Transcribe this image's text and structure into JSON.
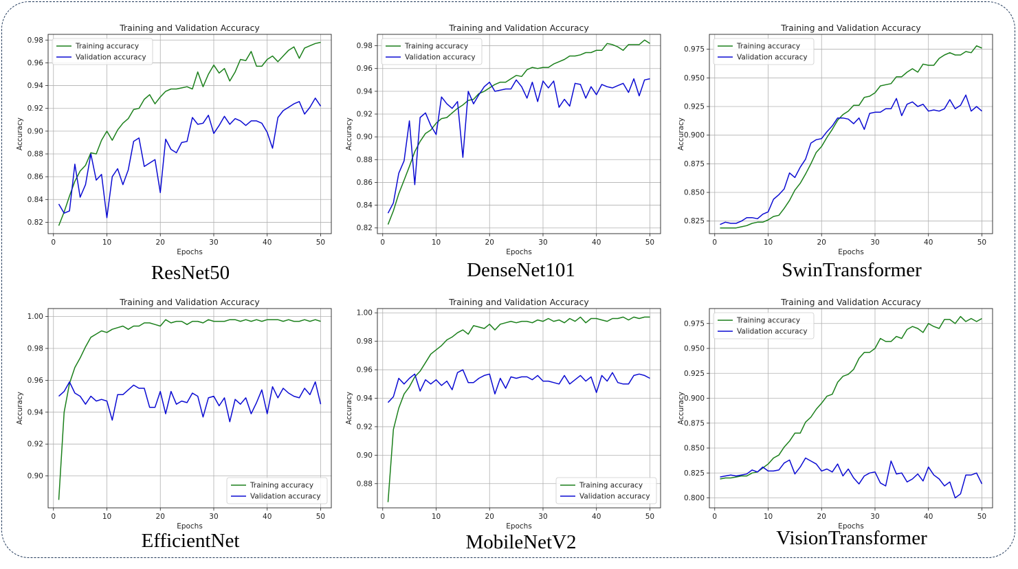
{
  "colors": {
    "training": "#1a7f1a",
    "validation": "#0a0ad2",
    "grid": "#b0b0b0",
    "frame": "#1d3557"
  },
  "charts": [
    {
      "model_name": "ResNet50",
      "chart_data": {
        "type": "line",
        "title": "Training and Validation Accuracy",
        "xlabel": "Epochs",
        "ylabel": "Accuracy",
        "xlim": [
          -1,
          52
        ],
        "ylim": [
          0.81,
          0.985
        ],
        "xticks": [
          0,
          10,
          20,
          30,
          40,
          50
        ],
        "yticks": [
          0.82,
          0.84,
          0.86,
          0.88,
          0.9,
          0.92,
          0.94,
          0.96,
          0.98
        ],
        "ytick_labels": [
          "0.82",
          "0.84",
          "0.86",
          "0.88",
          "0.90",
          "0.92",
          "0.94",
          "0.96",
          "0.98"
        ],
        "legend": "upper-left",
        "grid": true,
        "series": [
          {
            "name": "Training accuracy",
            "values": [
              0.817,
              0.829,
              0.843,
              0.856,
              0.865,
              0.87,
              0.881,
              0.88,
              0.892,
              0.9,
              0.892,
              0.901,
              0.907,
              0.911,
              0.919,
              0.92,
              0.928,
              0.932,
              0.924,
              0.93,
              0.935,
              0.937,
              0.937,
              0.938,
              0.939,
              0.937,
              0.952,
              0.939,
              0.95,
              0.958,
              0.951,
              0.955,
              0.944,
              0.952,
              0.963,
              0.962,
              0.97,
              0.957,
              0.957,
              0.963,
              0.966,
              0.961,
              0.966,
              0.971,
              0.974,
              0.964,
              0.973,
              0.975,
              0.977,
              0.978
            ]
          },
          {
            "name": "Validation accuracy",
            "values": [
              0.836,
              0.828,
              0.83,
              0.871,
              0.842,
              0.853,
              0.88,
              0.857,
              0.862,
              0.824,
              0.86,
              0.867,
              0.853,
              0.866,
              0.891,
              0.894,
              0.869,
              0.872,
              0.875,
              0.846,
              0.893,
              0.884,
              0.881,
              0.89,
              0.891,
              0.912,
              0.906,
              0.907,
              0.914,
              0.898,
              0.905,
              0.913,
              0.906,
              0.911,
              0.909,
              0.905,
              0.909,
              0.909,
              0.907,
              0.899,
              0.885,
              0.912,
              0.918,
              0.921,
              0.924,
              0.926,
              0.915,
              0.921,
              0.929,
              0.922
            ]
          }
        ]
      }
    },
    {
      "model_name": "DenseNet101",
      "chart_data": {
        "type": "line",
        "title": "Training and Validation Accuracy",
        "xlabel": "Epochs",
        "ylabel": "Accuracy",
        "xlim": [
          -1,
          52
        ],
        "ylim": [
          0.815,
          0.99
        ],
        "xticks": [
          0,
          10,
          20,
          30,
          40,
          50
        ],
        "yticks": [
          0.82,
          0.84,
          0.86,
          0.88,
          0.9,
          0.92,
          0.94,
          0.96,
          0.98
        ],
        "ytick_labels": [
          "0.82",
          "0.84",
          "0.86",
          "0.88",
          "0.90",
          "0.92",
          "0.94",
          "0.96",
          "0.98"
        ],
        "legend": "upper-left",
        "grid": true,
        "series": [
          {
            "name": "Training accuracy",
            "values": [
              0.823,
              0.835,
              0.85,
              0.862,
              0.874,
              0.887,
              0.896,
              0.903,
              0.906,
              0.912,
              0.916,
              0.917,
              0.921,
              0.925,
              0.928,
              0.932,
              0.933,
              0.938,
              0.94,
              0.943,
              0.946,
              0.948,
              0.948,
              0.951,
              0.954,
              0.953,
              0.959,
              0.961,
              0.96,
              0.961,
              0.961,
              0.964,
              0.966,
              0.968,
              0.971,
              0.971,
              0.972,
              0.974,
              0.974,
              0.976,
              0.976,
              0.982,
              0.981,
              0.979,
              0.976,
              0.981,
              0.981,
              0.981,
              0.985,
              0.982
            ]
          },
          {
            "name": "Validation accuracy",
            "values": [
              0.833,
              0.842,
              0.868,
              0.879,
              0.914,
              0.858,
              0.917,
              0.921,
              0.91,
              0.902,
              0.935,
              0.929,
              0.925,
              0.931,
              0.882,
              0.94,
              0.929,
              0.937,
              0.944,
              0.948,
              0.94,
              0.941,
              0.942,
              0.942,
              0.95,
              0.944,
              0.934,
              0.948,
              0.931,
              0.949,
              0.943,
              0.949,
              0.926,
              0.933,
              0.927,
              0.947,
              0.946,
              0.934,
              0.944,
              0.937,
              0.946,
              0.944,
              0.943,
              0.945,
              0.947,
              0.939,
              0.951,
              0.936,
              0.95,
              0.951
            ]
          }
        ]
      }
    },
    {
      "model_name": "SwinTransformer",
      "chart_data": {
        "type": "line",
        "title": "Training and Validation Accuracy",
        "xlabel": "Epochs",
        "ylabel": "Accuracy",
        "xlim": [
          -1,
          52
        ],
        "ylim": [
          0.814,
          0.988
        ],
        "xticks": [
          0,
          10,
          20,
          30,
          40,
          50
        ],
        "yticks": [
          0.825,
          0.85,
          0.875,
          0.9,
          0.925,
          0.95,
          0.975
        ],
        "ytick_labels": [
          "0.825",
          "0.850",
          "0.875",
          "0.900",
          "0.925",
          "0.950",
          "0.975"
        ],
        "legend": "upper-left",
        "grid": true,
        "series": [
          {
            "name": "Training accuracy",
            "values": [
              0.819,
              0.819,
              0.819,
              0.819,
              0.82,
              0.821,
              0.823,
              0.824,
              0.824,
              0.826,
              0.829,
              0.83,
              0.836,
              0.843,
              0.852,
              0.858,
              0.866,
              0.875,
              0.885,
              0.89,
              0.898,
              0.905,
              0.913,
              0.918,
              0.921,
              0.926,
              0.926,
              0.933,
              0.934,
              0.937,
              0.943,
              0.944,
              0.945,
              0.951,
              0.951,
              0.955,
              0.958,
              0.955,
              0.962,
              0.961,
              0.961,
              0.967,
              0.97,
              0.972,
              0.97,
              0.97,
              0.973,
              0.972,
              0.978,
              0.976
            ]
          },
          {
            "name": "Validation accuracy",
            "values": [
              0.822,
              0.824,
              0.823,
              0.823,
              0.825,
              0.828,
              0.828,
              0.827,
              0.831,
              0.833,
              0.844,
              0.848,
              0.853,
              0.867,
              0.863,
              0.872,
              0.879,
              0.893,
              0.896,
              0.897,
              0.903,
              0.908,
              0.915,
              0.915,
              0.914,
              0.91,
              0.915,
              0.905,
              0.919,
              0.92,
              0.92,
              0.923,
              0.923,
              0.932,
              0.917,
              0.927,
              0.929,
              0.925,
              0.927,
              0.921,
              0.922,
              0.921,
              0.923,
              0.931,
              0.923,
              0.926,
              0.935,
              0.921,
              0.925,
              0.921
            ]
          }
        ]
      }
    },
    {
      "model_name": "EfficientNet",
      "chart_data": {
        "type": "line",
        "title": "Training and Validation Accuracy",
        "xlabel": "Epochs",
        "ylabel": "Accuracy",
        "xlim": [
          -1,
          52
        ],
        "ylim": [
          0.88,
          1.005
        ],
        "xticks": [
          0,
          10,
          20,
          30,
          40,
          50
        ],
        "yticks": [
          0.9,
          0.92,
          0.94,
          0.96,
          0.98,
          1.0
        ],
        "ytick_labels": [
          "0.90",
          "0.92",
          "0.94",
          "0.96",
          "0.98",
          "1.00"
        ],
        "legend": "lower-right",
        "grid": true,
        "series": [
          {
            "name": "Training accuracy",
            "values": [
              0.885,
              0.94,
              0.958,
              0.968,
              0.974,
              0.981,
              0.987,
              0.989,
              0.991,
              0.99,
              0.992,
              0.993,
              0.994,
              0.992,
              0.994,
              0.994,
              0.996,
              0.996,
              0.995,
              0.994,
              0.998,
              0.996,
              0.997,
              0.997,
              0.995,
              0.997,
              0.997,
              0.996,
              0.998,
              0.997,
              0.997,
              0.997,
              0.998,
              0.998,
              0.997,
              0.998,
              0.997,
              0.998,
              0.997,
              0.998,
              0.998,
              0.998,
              0.997,
              0.998,
              0.997,
              0.997,
              0.998,
              0.997,
              0.998,
              0.997
            ]
          },
          {
            "name": "Validation accuracy",
            "values": [
              0.95,
              0.953,
              0.959,
              0.952,
              0.95,
              0.945,
              0.95,
              0.947,
              0.948,
              0.947,
              0.935,
              0.951,
              0.951,
              0.954,
              0.957,
              0.955,
              0.955,
              0.943,
              0.943,
              0.953,
              0.939,
              0.953,
              0.945,
              0.947,
              0.946,
              0.952,
              0.95,
              0.937,
              0.949,
              0.95,
              0.944,
              0.949,
              0.934,
              0.948,
              0.945,
              0.949,
              0.939,
              0.946,
              0.954,
              0.939,
              0.956,
              0.949,
              0.955,
              0.952,
              0.95,
              0.949,
              0.955,
              0.951,
              0.959,
              0.945
            ]
          }
        ]
      }
    },
    {
      "model_name": "MobileNetV2",
      "chart_data": {
        "type": "line",
        "title": "Training and Validation Accuracy",
        "xlabel": "Epochs",
        "ylabel": "Accuracy",
        "xlim": [
          -1,
          52
        ],
        "ylim": [
          0.863,
          1.003
        ],
        "xticks": [
          0,
          10,
          20,
          30,
          40,
          50
        ],
        "yticks": [
          0.88,
          0.9,
          0.92,
          0.94,
          0.96,
          0.98,
          1.0
        ],
        "ytick_labels": [
          "0.88",
          "0.90",
          "0.92",
          "0.94",
          "0.96",
          "0.98",
          "1.00"
        ],
        "legend": "lower-right",
        "grid": true,
        "series": [
          {
            "name": "Training accuracy",
            "values": [
              0.867,
              0.918,
              0.933,
              0.943,
              0.948,
              0.955,
              0.959,
              0.965,
              0.971,
              0.974,
              0.977,
              0.981,
              0.983,
              0.986,
              0.988,
              0.985,
              0.991,
              0.99,
              0.989,
              0.992,
              0.988,
              0.992,
              0.993,
              0.994,
              0.993,
              0.994,
              0.994,
              0.993,
              0.995,
              0.994,
              0.996,
              0.994,
              0.995,
              0.993,
              0.996,
              0.994,
              0.997,
              0.993,
              0.996,
              0.996,
              0.995,
              0.994,
              0.996,
              0.996,
              0.997,
              0.995,
              0.997,
              0.996,
              0.997,
              0.997
            ]
          },
          {
            "name": "Validation accuracy",
            "values": [
              0.937,
              0.941,
              0.954,
              0.95,
              0.954,
              0.957,
              0.945,
              0.953,
              0.95,
              0.953,
              0.949,
              0.952,
              0.946,
              0.958,
              0.96,
              0.951,
              0.951,
              0.954,
              0.956,
              0.957,
              0.943,
              0.954,
              0.947,
              0.955,
              0.954,
              0.955,
              0.955,
              0.953,
              0.956,
              0.952,
              0.952,
              0.951,
              0.95,
              0.956,
              0.95,
              0.953,
              0.956,
              0.952,
              0.955,
              0.944,
              0.956,
              0.952,
              0.958,
              0.951,
              0.95,
              0.95,
              0.956,
              0.957,
              0.956,
              0.954
            ]
          }
        ]
      }
    },
    {
      "model_name": "VisionTransformer",
      "chart_data": {
        "type": "line",
        "title": "Training and Validation Accuracy",
        "xlabel": "Epochs",
        "ylabel": "Accuracy",
        "xlim": [
          -1,
          52
        ],
        "ylim": [
          0.79,
          0.99
        ],
        "xticks": [
          0,
          10,
          20,
          30,
          40,
          50
        ],
        "yticks": [
          0.8,
          0.825,
          0.85,
          0.875,
          0.9,
          0.925,
          0.95,
          0.975
        ],
        "ytick_labels": [
          "0.800",
          "0.825",
          "0.850",
          "0.875",
          "0.900",
          "0.925",
          "0.950",
          "0.975"
        ],
        "legend": "upper-left",
        "grid": true,
        "series": [
          {
            "name": "Training accuracy",
            "values": [
              0.819,
              0.82,
              0.82,
              0.821,
              0.822,
              0.822,
              0.825,
              0.826,
              0.83,
              0.834,
              0.84,
              0.843,
              0.851,
              0.857,
              0.865,
              0.865,
              0.876,
              0.881,
              0.889,
              0.895,
              0.902,
              0.904,
              0.916,
              0.922,
              0.924,
              0.929,
              0.94,
              0.946,
              0.946,
              0.95,
              0.96,
              0.957,
              0.957,
              0.962,
              0.96,
              0.969,
              0.972,
              0.97,
              0.966,
              0.975,
              0.972,
              0.97,
              0.979,
              0.979,
              0.975,
              0.982,
              0.977,
              0.98,
              0.977,
              0.98
            ]
          },
          {
            "name": "Validation accuracy",
            "values": [
              0.821,
              0.822,
              0.823,
              0.822,
              0.823,
              0.824,
              0.828,
              0.826,
              0.831,
              0.827,
              0.827,
              0.828,
              0.835,
              0.838,
              0.824,
              0.831,
              0.84,
              0.837,
              0.834,
              0.827,
              0.829,
              0.826,
              0.834,
              0.822,
              0.829,
              0.82,
              0.814,
              0.822,
              0.825,
              0.826,
              0.815,
              0.812,
              0.837,
              0.824,
              0.825,
              0.816,
              0.819,
              0.824,
              0.817,
              0.831,
              0.823,
              0.819,
              0.812,
              0.816,
              0.8,
              0.804,
              0.823,
              0.823,
              0.825,
              0.814
            ]
          }
        ]
      }
    }
  ]
}
